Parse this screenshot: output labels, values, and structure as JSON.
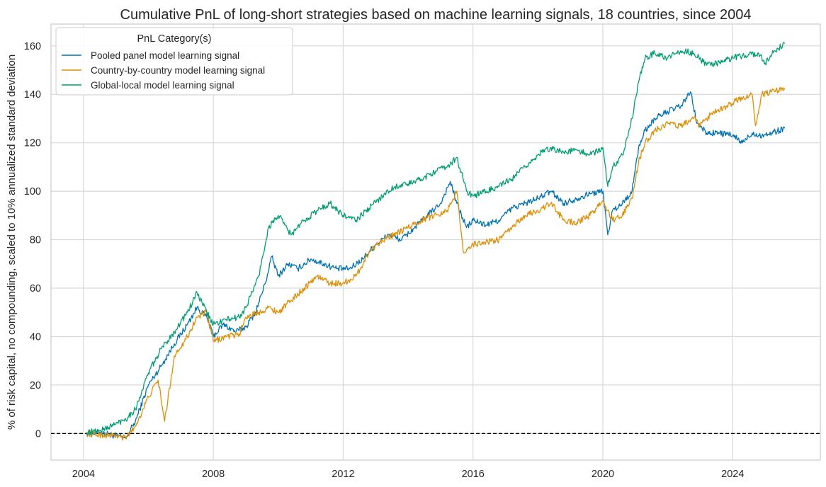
{
  "chart_data": {
    "type": "line",
    "title": "Cumulative PnL of long-short strategies based on machine learning signals, 18 countries, since 2004",
    "xlabel": "",
    "ylabel": "% of risk capital, no compounding, scaled to 10% annualized standard deviation",
    "xlim": [
      2003.0,
      2026.7
    ],
    "ylim": [
      -11,
      169
    ],
    "xticks": [
      2004,
      2008,
      2012,
      2016,
      2020,
      2024
    ],
    "xtick_labels": [
      "2004",
      "2008",
      "2012",
      "2016",
      "2020",
      "2024"
    ],
    "yticks": [
      0,
      20,
      40,
      60,
      80,
      100,
      120,
      140,
      160
    ],
    "ytick_labels": [
      "0",
      "20",
      "40",
      "60",
      "80",
      "100",
      "120",
      "140",
      "160"
    ],
    "grid": true,
    "reference_line": {
      "y": 0,
      "style": "dashed",
      "color": "#000000"
    },
    "legend": {
      "title": "PnL Category(s)",
      "placement": "top-left"
    },
    "series": [
      {
        "name": "Pooled panel model learning signal",
        "color": "#0173b2",
        "x": [
          2004.1,
          2004.5,
          2005.0,
          2005.3,
          2005.6,
          2006.0,
          2006.4,
          2006.8,
          2007.2,
          2007.5,
          2007.8,
          2008.0,
          2008.3,
          2008.7,
          2009.0,
          2009.3,
          2009.6,
          2009.8,
          2010.0,
          2010.3,
          2010.6,
          2011.0,
          2011.4,
          2011.8,
          2012.2,
          2012.6,
          2013.0,
          2013.4,
          2013.8,
          2014.2,
          2014.6,
          2015.0,
          2015.3,
          2015.5,
          2015.8,
          2016.0,
          2016.4,
          2016.8,
          2017.2,
          2017.6,
          2018.0,
          2018.4,
          2018.8,
          2019.2,
          2019.6,
          2020.0,
          2020.15,
          2020.3,
          2020.6,
          2020.9,
          2021.1,
          2021.3,
          2021.6,
          2022.0,
          2022.4,
          2022.7,
          2022.9,
          2023.2,
          2023.6,
          2024.0,
          2024.3,
          2024.6,
          2024.9,
          2025.2,
          2025.6
        ],
        "y": [
          0,
          0.5,
          -1,
          -2,
          5,
          20,
          28,
          37,
          45,
          52,
          48,
          40,
          45,
          42,
          44,
          50,
          62,
          73,
          65,
          70,
          68,
          72,
          70,
          68,
          68,
          72,
          78,
          82,
          80,
          85,
          90,
          95,
          104,
          95,
          85,
          88,
          86,
          88,
          93,
          95,
          97,
          100,
          95,
          97,
          99,
          100,
          82,
          92,
          95,
          100,
          118,
          125,
          130,
          133,
          135,
          141,
          128,
          124,
          124,
          123,
          120,
          124,
          123,
          124,
          126
        ]
      },
      {
        "name": "Country-by-country model learning signal",
        "color": "#de8f05",
        "x": [
          2004.1,
          2004.5,
          2005.0,
          2005.3,
          2005.6,
          2006.0,
          2006.3,
          2006.5,
          2006.8,
          2007.2,
          2007.5,
          2007.8,
          2008.0,
          2008.4,
          2008.8,
          2009.0,
          2009.4,
          2009.7,
          2010.0,
          2010.4,
          2010.8,
          2011.2,
          2011.6,
          2012.0,
          2012.4,
          2012.8,
          2013.2,
          2013.6,
          2014.0,
          2014.4,
          2014.8,
          2015.2,
          2015.5,
          2015.7,
          2016.0,
          2016.4,
          2016.8,
          2017.2,
          2017.6,
          2018.0,
          2018.4,
          2018.8,
          2019.2,
          2019.6,
          2020.0,
          2020.3,
          2020.6,
          2020.9,
          2021.1,
          2021.3,
          2021.6,
          2022.0,
          2022.4,
          2022.8,
          2023.0,
          2023.4,
          2023.8,
          2024.2,
          2024.6,
          2024.7,
          2024.9,
          2025.2,
          2025.6
        ],
        "y": [
          0,
          -0.5,
          -1,
          -2,
          3,
          15,
          22,
          5,
          32,
          40,
          48,
          50,
          38,
          40,
          41,
          48,
          50,
          52,
          50,
          55,
          60,
          65,
          62,
          62,
          65,
          75,
          80,
          82,
          85,
          88,
          90,
          92,
          100,
          75,
          78,
          79,
          80,
          85,
          90,
          92,
          95,
          88,
          87,
          90,
          96,
          88,
          90,
          97,
          112,
          120,
          125,
          128,
          127,
          130,
          127,
          133,
          135,
          138,
          140,
          127,
          140,
          141,
          142
        ]
      },
      {
        "name": "Global-local model learning signal",
        "color": "#029e73",
        "x": [
          2004.1,
          2004.5,
          2005.0,
          2005.3,
          2005.6,
          2006.0,
          2006.4,
          2006.8,
          2007.2,
          2007.5,
          2007.8,
          2008.0,
          2008.4,
          2008.8,
          2009.0,
          2009.4,
          2009.7,
          2010.0,
          2010.4,
          2010.8,
          2011.2,
          2011.6,
          2012.0,
          2012.4,
          2012.8,
          2013.2,
          2013.6,
          2014.0,
          2014.4,
          2014.8,
          2015.2,
          2015.5,
          2015.8,
          2016.0,
          2016.4,
          2016.8,
          2017.2,
          2017.6,
          2018.0,
          2018.4,
          2018.8,
          2019.2,
          2019.6,
          2020.0,
          2020.15,
          2020.3,
          2020.6,
          2020.9,
          2021.1,
          2021.3,
          2021.6,
          2022.0,
          2022.4,
          2022.8,
          2023.2,
          2023.6,
          2024.0,
          2024.4,
          2024.8,
          2025.0,
          2025.3,
          2025.6
        ],
        "y": [
          0.5,
          1,
          4,
          6,
          10,
          25,
          35,
          42,
          50,
          58,
          50,
          45,
          47,
          48,
          52,
          65,
          85,
          90,
          82,
          88,
          92,
          95,
          90,
          88,
          93,
          98,
          102,
          103,
          105,
          108,
          110,
          114,
          100,
          98,
          100,
          102,
          105,
          110,
          115,
          118,
          116,
          117,
          115,
          118,
          102,
          110,
          115,
          130,
          145,
          155,
          157,
          155,
          158,
          157,
          152,
          153,
          155,
          156,
          157,
          153,
          158,
          161
        ]
      }
    ]
  }
}
